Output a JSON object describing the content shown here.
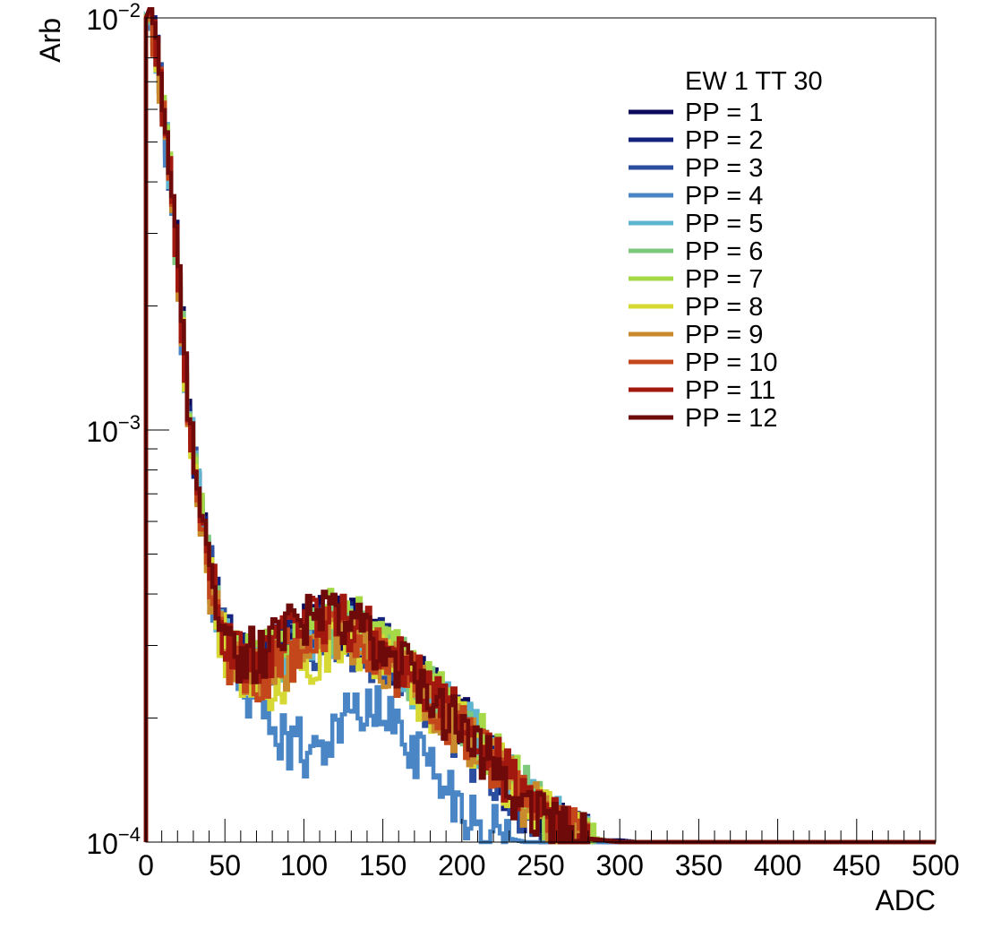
{
  "chart_data": {
    "type": "line",
    "title": "",
    "xlabel": "ADC",
    "ylabel": "Arb",
    "xlim": [
      0,
      500
    ],
    "ylim": [
      0.0001,
      0.01
    ],
    "yscale": "log",
    "x_tick_values": [
      0,
      50,
      100,
      150,
      200,
      250,
      300,
      350,
      400,
      450,
      500
    ],
    "x_tick_labels": [
      "0",
      "50",
      "100",
      "150",
      "200",
      "250",
      "300",
      "350",
      "400",
      "450",
      "500"
    ],
    "y_tick_labels": [
      {
        "value": 0.0001,
        "base": "10",
        "exp": "−4"
      },
      {
        "value": 0.001,
        "base": "10",
        "exp": "−3"
      },
      {
        "value": 0.01,
        "base": "10",
        "exp": "−2"
      }
    ],
    "grid": false,
    "legend_position": "top-right",
    "legend_header": "EW 1 TT 30",
    "histogram_bin_width": 2,
    "series_shape_points": {
      "x": [
        0,
        2,
        4,
        6,
        8,
        10,
        15,
        20,
        25,
        30,
        35,
        40,
        45,
        50,
        55,
        60,
        70,
        80,
        90,
        100,
        110,
        120,
        130,
        140,
        150,
        160,
        170,
        180,
        190,
        200,
        210,
        220,
        230,
        240,
        250,
        260,
        270,
        280,
        290,
        300,
        310
      ]
    },
    "series": [
      {
        "name": "PP = 1",
        "color": "#0b0a5c",
        "values": [
          0.0001,
          0.0103,
          0.0098,
          0.009,
          0.008,
          0.0068,
          0.0045,
          0.0027,
          0.00145,
          0.00092,
          0.00066,
          0.0005,
          0.0004,
          0.000325,
          0.0003,
          0.00029,
          0.00028,
          0.00029,
          0.000315,
          0.000335,
          0.000345,
          0.000348,
          0.00034,
          0.000322,
          0.0003,
          0.000277,
          0.000255,
          0.000234,
          0.000215,
          0.000198,
          0.000178,
          0.000158,
          0.00014,
          0.000126,
          0.000115,
          0.000108,
          0.000104,
          0.000102,
          0.000101,
          0.000101,
          0.0001
        ]
      },
      {
        "name": "PP = 2",
        "color": "#14237e",
        "values": [
          0.0001,
          0.0101,
          0.0096,
          0.0088,
          0.0078,
          0.0066,
          0.0043,
          0.0026,
          0.0014,
          0.0009,
          0.00065,
          0.00049,
          0.00039,
          0.00032,
          0.000295,
          0.000285,
          0.000278,
          0.000288,
          0.000312,
          0.000332,
          0.000342,
          0.000346,
          0.000338,
          0.00032,
          0.000298,
          0.000274,
          0.000252,
          0.000231,
          0.000212,
          0.000194,
          0.000175,
          0.000155,
          0.000138,
          0.000124,
          0.000114,
          0.000107,
          0.000103,
          0.000101,
          0.0001,
          0.0001,
          0.0001
        ]
      },
      {
        "name": "PP = 3",
        "color": "#2c4e9f",
        "values": [
          0.0001,
          0.01,
          0.0095,
          0.0087,
          0.0077,
          0.0065,
          0.0042,
          0.0025,
          0.00136,
          0.00088,
          0.00063,
          0.00047,
          0.00037,
          0.000305,
          0.00028,
          0.00027,
          0.000262,
          0.00027,
          0.000288,
          0.000305,
          0.000315,
          0.000318,
          0.000312,
          0.000298,
          0.00028,
          0.000258,
          0.000238,
          0.000216,
          0.000196,
          0.000178,
          0.00016,
          0.000142,
          0.000127,
          0.000115,
          0.000107,
          0.000102,
          0.0001,
          0.0001,
          0.0001,
          0.0001,
          0.0001
        ]
      },
      {
        "name": "PP = 4",
        "color": "#4a86c5",
        "values": [
          0.0001,
          0.0098,
          0.0093,
          0.0085,
          0.0075,
          0.0063,
          0.0041,
          0.0024,
          0.0013,
          0.00085,
          0.0006,
          0.00045,
          0.00035,
          0.00029,
          0.000265,
          0.00025,
          0.000225,
          0.0002,
          0.00018,
          0.00017,
          0.000175,
          0.00019,
          0.000205,
          0.000212,
          0.000205,
          0.00019,
          0.000172,
          0.000155,
          0.000138,
          0.000124,
          0.000113,
          0.000106,
          0.000102,
          0.0001,
          0.0001,
          0.0001,
          0.0001,
          0.0001,
          0.0001,
          0.0001,
          0.0001
        ]
      },
      {
        "name": "PP = 5",
        "color": "#5fb4cf",
        "values": [
          0.0001,
          0.01,
          0.0095,
          0.0087,
          0.0077,
          0.0065,
          0.0043,
          0.0025,
          0.00138,
          0.00089,
          0.00064,
          0.00048,
          0.00038,
          0.00031,
          0.000285,
          0.00027,
          0.00026,
          0.000268,
          0.00029,
          0.000312,
          0.000325,
          0.00033,
          0.000326,
          0.000312,
          0.000294,
          0.000272,
          0.00025,
          0.00023,
          0.000212,
          0.000196,
          0.00018,
          0.000163,
          0.000147,
          0.000133,
          0.000122,
          0.000113,
          0.000107,
          0.000103,
          0.000101,
          0.0001,
          0.0001
        ]
      },
      {
        "name": "PP = 6",
        "color": "#7cc97e",
        "values": [
          0.0001,
          0.01,
          0.0095,
          0.0087,
          0.0077,
          0.0065,
          0.0043,
          0.0025,
          0.00138,
          0.00089,
          0.00064,
          0.00048,
          0.00038,
          0.000312,
          0.000286,
          0.000272,
          0.000264,
          0.000274,
          0.000298,
          0.000322,
          0.000336,
          0.000342,
          0.000336,
          0.00032,
          0.0003,
          0.000278,
          0.000256,
          0.000236,
          0.000216,
          0.000199,
          0.000182,
          0.000164,
          0.000148,
          0.000134,
          0.000122,
          0.000113,
          0.000107,
          0.000103,
          0.000101,
          0.0001,
          0.0001
        ]
      },
      {
        "name": "PP = 7",
        "color": "#a6d948",
        "values": [
          0.0001,
          0.01,
          0.0095,
          0.0087,
          0.0077,
          0.0065,
          0.0043,
          0.0025,
          0.00138,
          0.00089,
          0.00064,
          0.00048,
          0.00038,
          0.000312,
          0.000288,
          0.000276,
          0.000272,
          0.000285,
          0.00031,
          0.000335,
          0.000352,
          0.000358,
          0.00035,
          0.000332,
          0.00031,
          0.000286,
          0.000262,
          0.00024,
          0.00022,
          0.000202,
          0.000184,
          0.000165,
          0.000149,
          0.000134,
          0.000122,
          0.000113,
          0.000107,
          0.000103,
          0.000101,
          0.0001,
          0.0001
        ]
      },
      {
        "name": "PP = 8",
        "color": "#d6d834",
        "values": [
          0.0001,
          0.0099,
          0.0094,
          0.0086,
          0.0076,
          0.0064,
          0.0042,
          0.0025,
          0.00135,
          0.00087,
          0.00062,
          0.00046,
          0.00036,
          0.0003,
          0.000275,
          0.000262,
          0.00025,
          0.00025,
          0.000262,
          0.00028,
          0.000295,
          0.000302,
          0.0003,
          0.00029,
          0.000275,
          0.000258,
          0.00024,
          0.000222,
          0.000205,
          0.000189,
          0.000173,
          0.000157,
          0.000142,
          0.000129,
          0.000118,
          0.00011,
          0.000105,
          0.000102,
          0.000101,
          0.0001,
          0.0001
        ]
      },
      {
        "name": "PP = 9",
        "color": "#c98a2e",
        "values": [
          0.0001,
          0.0098,
          0.0093,
          0.0085,
          0.0075,
          0.0063,
          0.0041,
          0.0024,
          0.00132,
          0.00086,
          0.00061,
          0.00045,
          0.00035,
          0.000295,
          0.000272,
          0.000262,
          0.000252,
          0.000256,
          0.000272,
          0.000292,
          0.000306,
          0.000312,
          0.000308,
          0.000296,
          0.00028,
          0.000262,
          0.000243,
          0.000224,
          0.000206,
          0.00019,
          0.000173,
          0.000156,
          0.000141,
          0.000128,
          0.000117,
          0.000109,
          0.000104,
          0.000102,
          0.000101,
          0.0001,
          0.0001
        ]
      },
      {
        "name": "PP = 10",
        "color": "#c4461b",
        "values": [
          0.0001,
          0.0099,
          0.0094,
          0.0086,
          0.0076,
          0.0064,
          0.0042,
          0.0025,
          0.00135,
          0.00087,
          0.00062,
          0.00046,
          0.00036,
          0.000302,
          0.000278,
          0.000266,
          0.000258,
          0.000266,
          0.000285,
          0.000305,
          0.000318,
          0.000322,
          0.000317,
          0.000304,
          0.000286,
          0.000266,
          0.000246,
          0.000226,
          0.000208,
          0.000191,
          0.000174,
          0.000156,
          0.000141,
          0.000127,
          0.000116,
          0.000108,
          0.000104,
          0.000102,
          0.000101,
          0.0001,
          0.0001
        ]
      },
      {
        "name": "PP = 11",
        "color": "#a2180f",
        "values": [
          0.0001,
          0.01,
          0.0095,
          0.0087,
          0.0077,
          0.0065,
          0.0043,
          0.0025,
          0.00138,
          0.00089,
          0.00064,
          0.00048,
          0.00038,
          0.000312,
          0.00029,
          0.000282,
          0.00028,
          0.000292,
          0.000316,
          0.000338,
          0.00035,
          0.000352,
          0.000344,
          0.000326,
          0.000304,
          0.00028,
          0.000256,
          0.000234,
          0.000214,
          0.000196,
          0.000178,
          0.00016,
          0.000144,
          0.00013,
          0.000118,
          0.00011,
          0.000105,
          0.000102,
          0.000101,
          0.0001,
          0.0001
        ]
      },
      {
        "name": "PP = 12",
        "color": "#6e0a0a",
        "values": [
          0.0001,
          0.0101,
          0.0096,
          0.0088,
          0.0078,
          0.0066,
          0.0044,
          0.0026,
          0.0014,
          0.0009,
          0.00065,
          0.00049,
          0.00039,
          0.000318,
          0.000296,
          0.00029,
          0.00029,
          0.000305,
          0.000328,
          0.000346,
          0.000354,
          0.000352,
          0.00034,
          0.00032,
          0.000296,
          0.000272,
          0.000248,
          0.000226,
          0.000206,
          0.000188,
          0.00017,
          0.000153,
          0.000138,
          0.000125,
          0.000115,
          0.000108,
          0.000104,
          0.000102,
          0.000101,
          0.0001,
          0.0001
        ]
      }
    ]
  }
}
